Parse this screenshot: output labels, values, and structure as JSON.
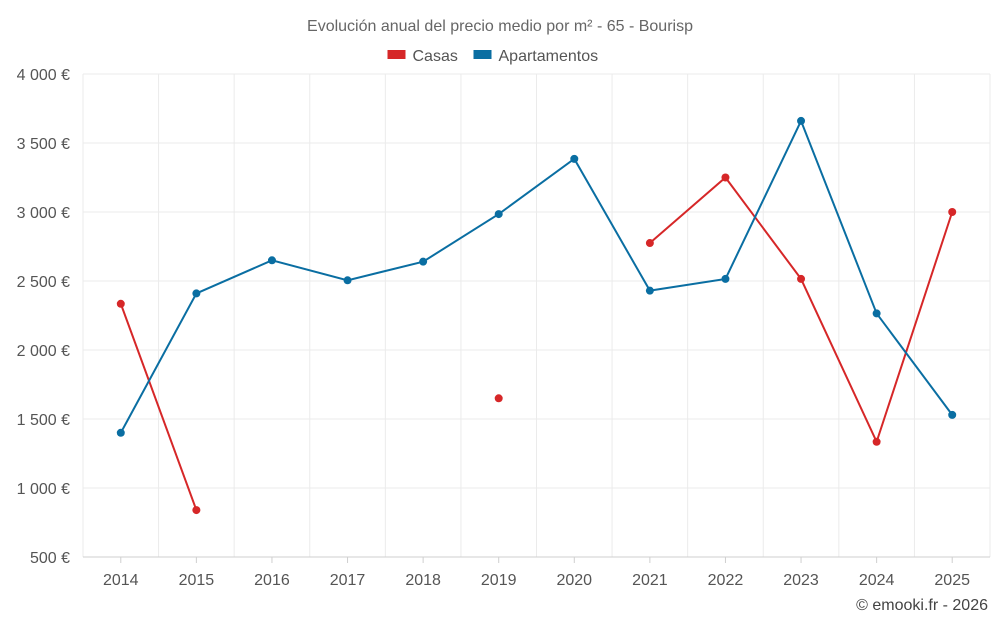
{
  "chart_data": {
    "type": "line",
    "title": "Evolución anual del precio medio por m² - 65 - Bourisp",
    "xlabel": "",
    "ylabel": "",
    "categories": [
      "2014",
      "2015",
      "2016",
      "2017",
      "2018",
      "2019",
      "2020",
      "2021",
      "2022",
      "2023",
      "2024",
      "2025"
    ],
    "ylim": [
      500,
      4000
    ],
    "yticks": [
      500,
      1000,
      1500,
      2000,
      2500,
      3000,
      3500,
      4000
    ],
    "ytick_labels": [
      "500 €",
      "1 000 €",
      "1 500 €",
      "2 000 €",
      "2 500 €",
      "3 000 €",
      "3 500 €",
      "4 000 €"
    ],
    "grid": true,
    "legend_position": "top-center",
    "series": [
      {
        "name": "Casas",
        "color": "#d62728",
        "values": [
          2335,
          840,
          null,
          null,
          null,
          1650,
          null,
          2775,
          3250,
          2515,
          1335,
          3000
        ]
      },
      {
        "name": "Apartamentos",
        "color": "#0a6ea2",
        "values": [
          1400,
          2410,
          2650,
          2505,
          2640,
          2985,
          3385,
          2430,
          2515,
          3660,
          2265,
          1530
        ]
      }
    ]
  },
  "credit": "© emooki.fr - 2026"
}
